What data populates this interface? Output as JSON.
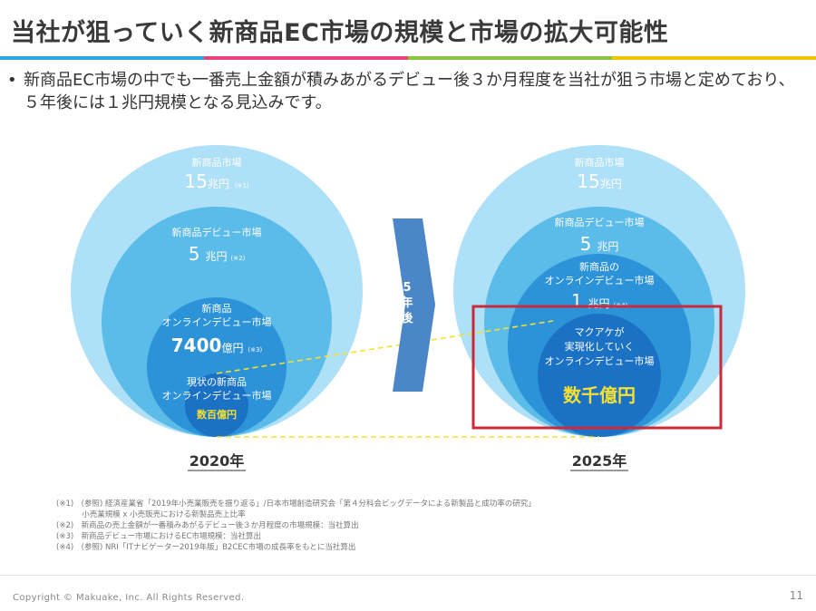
{
  "title": "当社が狙っていく新商品EC市場の規模と市場の拡大可能性",
  "bullet": "新商品EC市場の中でも一番売上金額が積みあがるデビュー後３か月程度を当社が狙う市場と定めており、５年後には１兆円規模となる見込みです。",
  "colors": {
    "rule": [
      "#2aa8e0",
      "#e8457a",
      "#8cc63f",
      "#f3c300"
    ],
    "outer": "#aee0f7",
    "second": "#5bbbe9",
    "third": "#2c93d8",
    "inner": "#1b72c4",
    "highlight": "#f5e033",
    "box": "#cc2a3b",
    "arrow": "#4a86c8"
  },
  "left": {
    "outer_label": "新商品市場",
    "outer_value": "15",
    "outer_unit": "兆円",
    "outer_note": "(※1)",
    "second_label": "新商品デビュー市場",
    "second_value": "5",
    "second_unit": "兆円",
    "second_note": "(※2)",
    "third_label_1": "新商品",
    "third_label_2": "オンラインデビュー市場",
    "third_value": "7400",
    "third_unit": "億円",
    "third_note": "(※3)",
    "inner_label_1": "現状の新商品",
    "inner_label_2": "オンラインデビュー市場",
    "inner_value": "数百億円",
    "year": "2020年"
  },
  "arrow": {
    "chars": [
      "5",
      "年",
      "後"
    ]
  },
  "right": {
    "outer_label": "新商品市場",
    "outer_value": "15",
    "outer_unit": "兆円",
    "second_label": "新商品デビュー市場",
    "second_value": "5",
    "second_unit": "兆円",
    "third_label_1": "新商品の",
    "third_label_2": "オンラインデビュー市場",
    "third_value": "1",
    "third_unit": "兆円",
    "third_note": "(※4)",
    "inner_label_1": "マクアケが",
    "inner_label_2": "実現化していく",
    "inner_label_3": "オンラインデビュー市場",
    "inner_value": "数千億円",
    "year": "2025年"
  },
  "notes": [
    "(※1)　(参照) 経済産業省「2019年小売業販売を振り返る」/日本市場創造研究会「第４分科会ビッグデータによる新製品と成功率の研究」",
    "　　　 小売業規模 x 小売販売における新製品売上比率",
    "(※2)　新商品の売上金額が一番積みあがるデビュー後３か月程度の市場規模：当社算出",
    "(※3)　新商品デビュー市場におけるEC市場規模：当社算出",
    "(※4)　(参照) NRI「ITナビゲーター2019年版」B2CEC市場の成長率をもとに当社算出"
  ],
  "copyright": "Copyright © Makuake, Inc. All Rights Reserved.",
  "page_number": "11"
}
